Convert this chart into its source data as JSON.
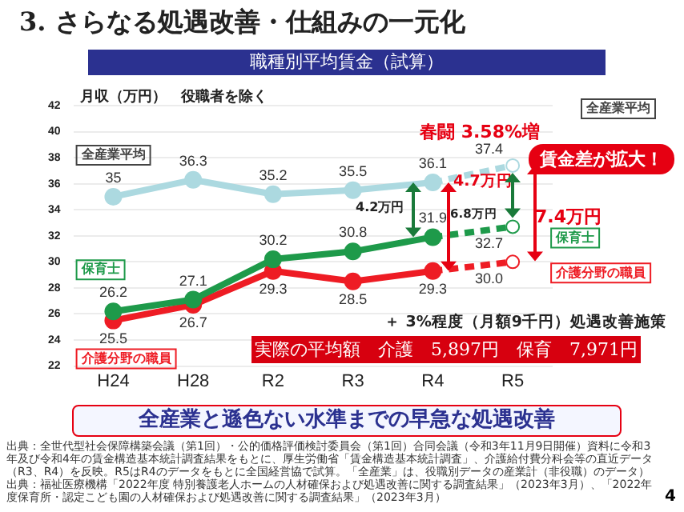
{
  "chart_data": {
    "type": "line",
    "title": "3. さらなる処遇改善・仕組みの一元化",
    "subtitle": "職種別平均賃金（試算）",
    "ylabel": "月収（万円）　役職者を除く",
    "categories": [
      "H24",
      "H28",
      "R2",
      "R3",
      "R4",
      "R5"
    ],
    "series": [
      {
        "name": "全産業平均",
        "color": "#acd9e0",
        "values": [
          35,
          36.3,
          35.2,
          35.5,
          36.1,
          37.4
        ],
        "value_labels": [
          "35",
          "36.3",
          "35.2",
          "35.5",
          "36.1",
          "37.4"
        ]
      },
      {
        "name": "保育士",
        "color": "#1e9a4a",
        "values": [
          26.2,
          27.1,
          30.2,
          30.8,
          31.9,
          32.7
        ],
        "value_labels": [
          "26.2",
          "27.1",
          "30.2",
          "30.8",
          "31.9",
          "32.7"
        ]
      },
      {
        "name": "介護分野の職員",
        "color": "#ee1c24",
        "values": [
          25.5,
          26.7,
          29.3,
          28.5,
          29.3,
          30.0
        ],
        "value_labels": [
          "25.5",
          "26.7",
          "29.3",
          "28.5",
          "29.3",
          "30.0"
        ]
      }
    ],
    "ylim": [
      22,
      42
    ],
    "yticks": [
      22,
      24,
      26,
      28,
      30,
      32,
      34,
      36,
      38,
      40,
      42
    ],
    "grid": "y",
    "marker": "circle",
    "legend": "left",
    "annotations": [
      "春闘 3.58%増",
      "4.2万円",
      "6.8万円",
      "4.7万円",
      "7.4万円",
      "賃金差が拡大！",
      "＋ 3%程度（月額9千円）処遇改善施策",
      "実際の平均額　介護　5,897円　保育　7,971円",
      "全産業と遜色ない水準までの早急な処遇改善",
      "出典：全世代型社会保障構築会議（第1回）・公的価格評価検討委員会（第1回）合同会議（令和3年11月9日開催）資料に令和3年及び令和4年の賃金構造基本統計調査結果をもとに、厚生労働省「賃金構造基本統計調査」、介護給付費分科会等の直近データ（R3、R4）を反映。R5はR4のデータをもとに全国経営協で試算。「全産業」は、役職別データの産業計（非役職）のデータ）",
      "出典：福祉医療機構「2022年度 特別養護老人ホームの人材確保および処遇改善に関する調査結果」（2023年3月）、「2022年度保育所・認定こども園の人材確保および処遇改善に関する調査結果」（2023年3月）",
      "4"
    ]
  }
}
